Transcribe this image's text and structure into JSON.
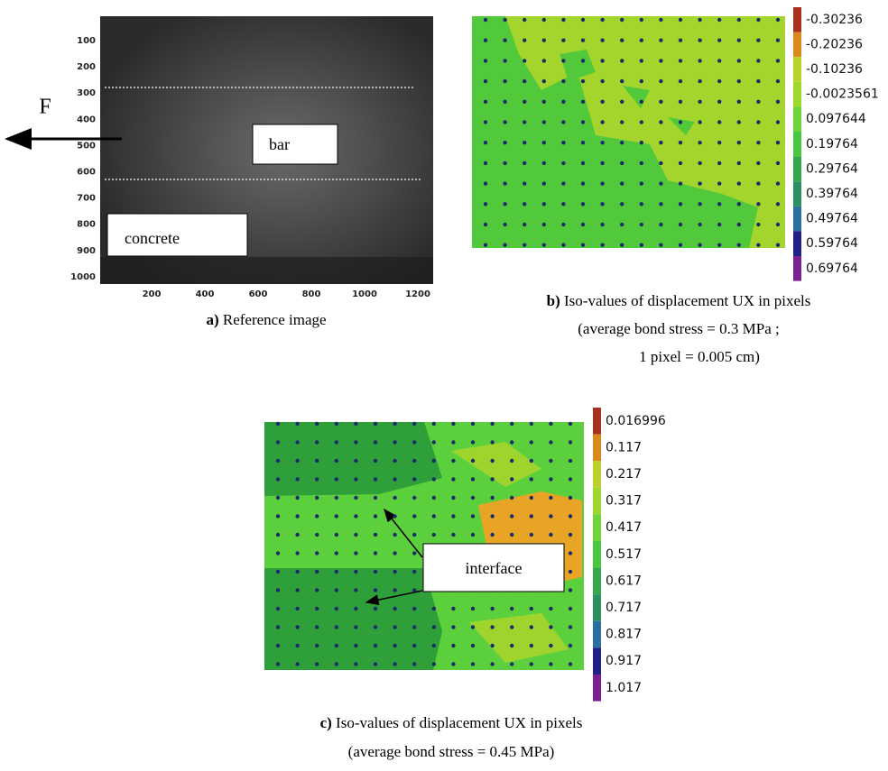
{
  "panel_a": {
    "y_ticks": [
      100,
      200,
      300,
      400,
      500,
      600,
      700,
      800,
      900,
      1000
    ],
    "x_ticks": [
      200,
      400,
      600,
      800,
      1000,
      1200
    ],
    "force_label": "F",
    "bar_label": "bar",
    "concrete_label": "concrete",
    "caption": {
      "label": "a)",
      "text": "Reference image"
    }
  },
  "panel_b": {
    "colorbar": [
      -0.30236,
      -0.20236,
      -0.10236,
      -0.0023561,
      0.097644,
      0.19764,
      0.29764,
      0.39764,
      0.49764,
      0.59764,
      0.69764
    ],
    "caption": {
      "label": "b)",
      "text": "Iso-values of displacement UX in pixels",
      "line2": "(average bond stress = 0.3 MPa ;",
      "line3": "1 pixel = 0.005 cm)"
    }
  },
  "panel_c": {
    "colorbar": [
      0.016996,
      0.117,
      0.217,
      0.317,
      0.417,
      0.517,
      0.617,
      0.717,
      0.817,
      0.917,
      1.017
    ],
    "interface_label": "interface",
    "caption": {
      "label": "c)",
      "text": "Iso-values of displacement UX in pixels",
      "line2": "(average bond stress = 0.45 MPa)"
    }
  }
}
